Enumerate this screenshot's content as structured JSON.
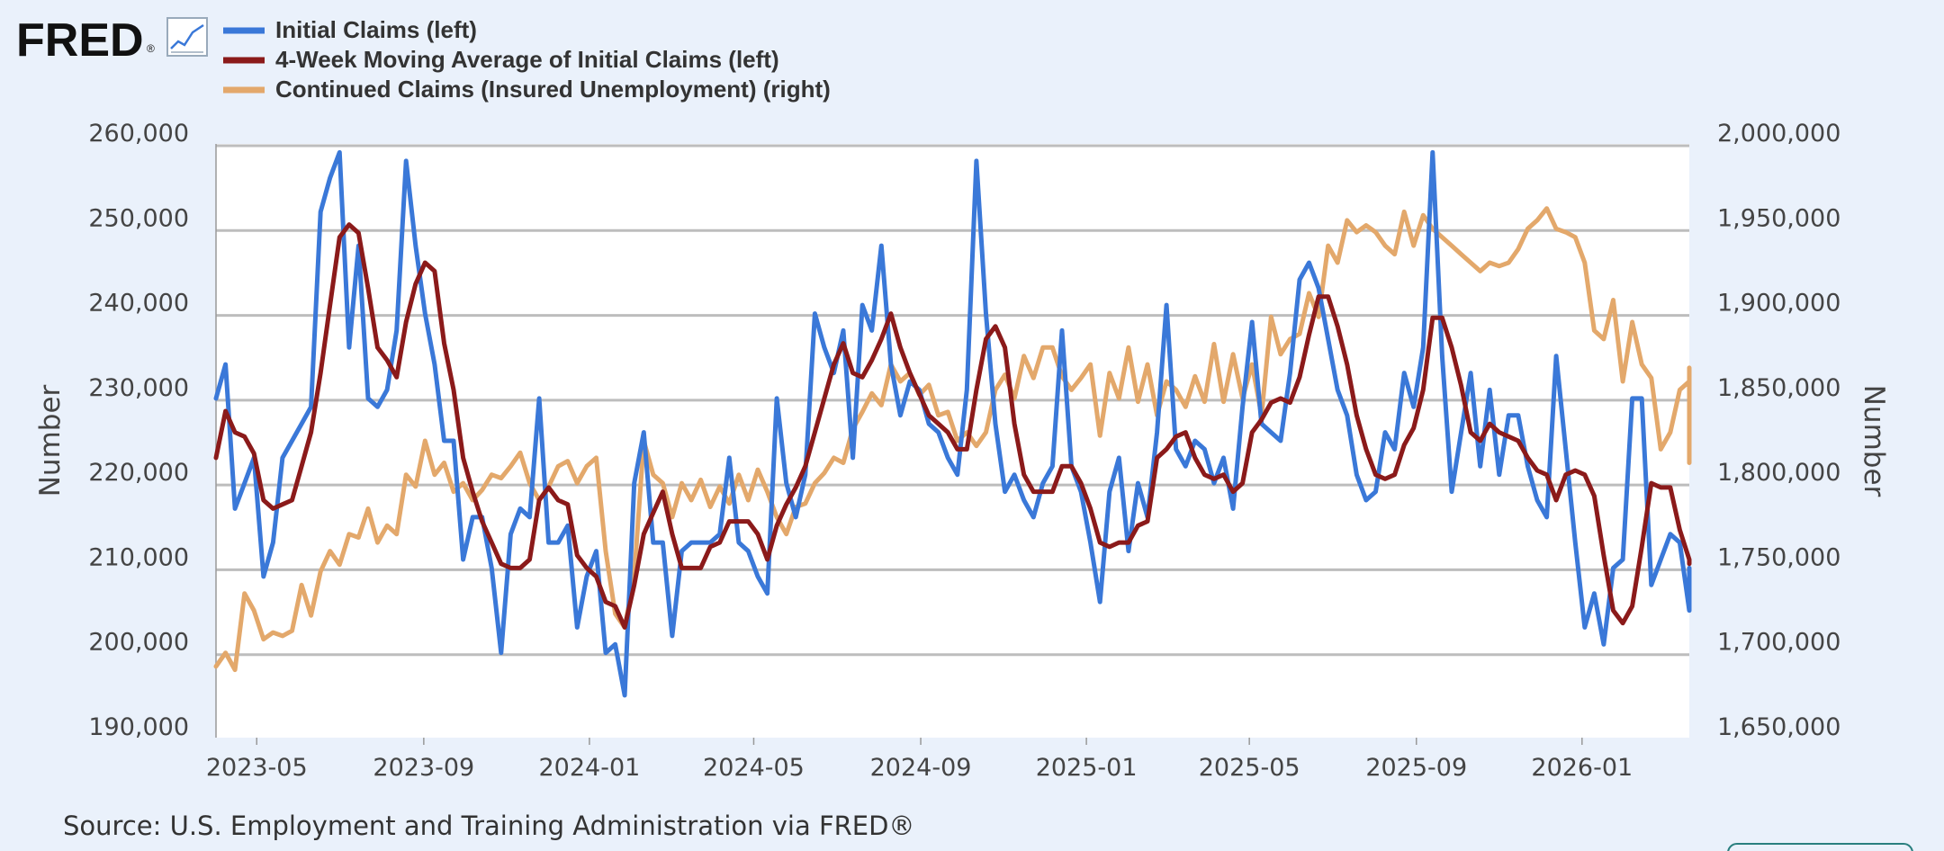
{
  "brand": {
    "logo_text": "FRED",
    "logo_registered": "®"
  },
  "legend": [
    {
      "label": "Initial Claims (left)",
      "color": "#3a78d8"
    },
    {
      "label": "4-Week Moving Average of Initial Claims (left)",
      "color": "#8b1a1a"
    },
    {
      "label": "Continued Claims (Insured Unemployment) (right)",
      "color": "#e3a86b"
    }
  ],
  "axes": {
    "left_title": "Number",
    "right_title": "Number",
    "left_ticks": [
      "260,000",
      "250,000",
      "240,000",
      "230,000",
      "220,000",
      "210,000",
      "200,000",
      "190,000"
    ],
    "right_ticks": [
      "2,000,000",
      "1,950,000",
      "1,900,000",
      "1,850,000",
      "1,800,000",
      "1,750,000",
      "1,700,000",
      "1,650,000"
    ],
    "x_ticks": [
      "2023-05",
      "2023-09",
      "2024-01",
      "2024-05",
      "2024-09",
      "2025-01",
      "2025-05",
      "2025-09",
      "2026-01"
    ]
  },
  "source": "Source: U.S. Employment and Training Administration via FRED®",
  "chart_data": {
    "type": "line",
    "x_start": "2023-04-01",
    "x_end": "2026-03-21",
    "x_step_days": 7,
    "left_ylim": [
      190000,
      260000
    ],
    "right_ylim": [
      1650000,
      2000000
    ],
    "grid": true,
    "series": [
      {
        "name": "Initial Claims (left)",
        "axis": "left",
        "color": "#3a78d8",
        "values": [
          230000,
          234000,
          217000,
          220000,
          223000,
          209000,
          213000,
          223000,
          225000,
          227000,
          229000,
          252000,
          256000,
          259000,
          236000,
          248000,
          230000,
          229000,
          231000,
          238000,
          258000,
          248000,
          240000,
          234000,
          225000,
          225000,
          211000,
          216000,
          216000,
          210000,
          200000,
          214000,
          217000,
          216000,
          230000,
          213000,
          213000,
          215000,
          203000,
          209000,
          212000,
          200000,
          201000,
          195000,
          220000,
          226000,
          213000,
          213000,
          202000,
          212000,
          213000,
          213000,
          213000,
          214000,
          223000,
          213000,
          212000,
          209000,
          207000,
          230000,
          220000,
          216000,
          221000,
          240000,
          236000,
          233000,
          238000,
          223000,
          241000,
          238000,
          248000,
          234000,
          228000,
          232000,
          231000,
          227000,
          226000,
          223000,
          221000,
          231000,
          258000,
          240000,
          227000,
          219000,
          221000,
          218000,
          216000,
          220000,
          222000,
          238000,
          222000,
          219000,
          213000,
          206000,
          219000,
          223000,
          212000,
          220000,
          216000,
          226000,
          241000,
          224000,
          222000,
          225000,
          224000,
          220000,
          223000,
          217000,
          229000,
          239000,
          227000,
          226000,
          225000,
          233000,
          244000,
          246000,
          243000,
          237000,
          231000,
          228000,
          221000,
          218000,
          219000,
          226000,
          224000,
          233000,
          229000,
          236000,
          259000,
          235000,
          219000,
          226000,
          233000,
          222000,
          231000,
          221000,
          228000,
          228000,
          222000,
          218000,
          216000,
          235000,
          224000,
          213000,
          203000,
          207000,
          201000,
          210000,
          211000,
          230000,
          230000,
          208000,
          211000,
          214000,
          213000,
          205000,
          210000
        ]
      },
      {
        "name": "4-Week Moving Average of Initial Claims (left)",
        "axis": "left",
        "color": "#8b1a1a",
        "values": [
          223000,
          228500,
          226000,
          225500,
          223500,
          218000,
          217000,
          217500,
          218000,
          222000,
          226000,
          233000,
          241000,
          249000,
          250500,
          249500,
          243000,
          236000,
          234500,
          232500,
          239000,
          243500,
          246000,
          245000,
          236500,
          231000,
          223000,
          219000,
          215500,
          213000,
          210500,
          210000,
          210000,
          211000,
          218000,
          219500,
          218000,
          217500,
          211500,
          210000,
          209000,
          206000,
          205500,
          203000,
          208000,
          214000,
          216500,
          219000,
          214000,
          210000,
          210000,
          210000,
          212500,
          213000,
          215500,
          215500,
          215500,
          214000,
          211000,
          215000,
          217500,
          219500,
          222000,
          226000,
          230000,
          234000,
          236500,
          233000,
          232500,
          234500,
          237000,
          240000,
          236000,
          233000,
          230500,
          228000,
          227000,
          226000,
          224000,
          224000,
          231000,
          237000,
          238500,
          236000,
          227000,
          221000,
          219000,
          219000,
          219000,
          222000,
          222000,
          220000,
          217000,
          213000,
          212500,
          213000,
          213000,
          215000,
          215500,
          223000,
          224000,
          225500,
          226000,
          223000,
          221000,
          220500,
          221000,
          219000,
          220000,
          226000,
          227500,
          229500,
          230000,
          229500,
          232500,
          237500,
          242000,
          242000,
          238500,
          234000,
          228000,
          224000,
          221000,
          220500,
          221000,
          224500,
          226500,
          231000,
          239500,
          239500,
          236000,
          231500,
          226000,
          225000,
          227000,
          226000,
          225500,
          225000,
          223000,
          221500,
          221000,
          218000,
          221000,
          221500,
          221000,
          218500,
          211500,
          205000,
          203500,
          205500,
          212500,
          220000,
          219500,
          219500,
          214500,
          211000,
          210500
        ]
      },
      {
        "name": "Continued Claims (Insured Unemployment) (right)",
        "axis": "right",
        "color": "#e3a86b",
        "values": [
          1692000,
          1700000,
          1690000,
          1735000,
          1725000,
          1708000,
          1712000,
          1710000,
          1713000,
          1740000,
          1722000,
          1748000,
          1760000,
          1752000,
          1770000,
          1768000,
          1785000,
          1765000,
          1775000,
          1770000,
          1805000,
          1798000,
          1825000,
          1805000,
          1812000,
          1795000,
          1800000,
          1790000,
          1796000,
          1805000,
          1803000,
          1810000,
          1818000,
          1800000,
          1790000,
          1798000,
          1810000,
          1813000,
          1800000,
          1810000,
          1815000,
          1760000,
          1723000,
          1715000,
          1745000,
          1825000,
          1805000,
          1800000,
          1780000,
          1800000,
          1790000,
          1802000,
          1786000,
          1798000,
          1788000,
          1805000,
          1790000,
          1808000,
          1795000,
          1780000,
          1770000,
          1786000,
          1788000,
          1800000,
          1806000,
          1815000,
          1812000,
          1832000,
          1842000,
          1853000,
          1846000,
          1870000,
          1860000,
          1865000,
          1852000,
          1858000,
          1840000,
          1842000,
          1825000,
          1830000,
          1822000,
          1830000,
          1855000,
          1864000,
          1850000,
          1875000,
          1862000,
          1880000,
          1880000,
          1863000,
          1855000,
          1862000,
          1870000,
          1828000,
          1865000,
          1850000,
          1880000,
          1848000,
          1870000,
          1840000,
          1860000,
          1855000,
          1845000,
          1863000,
          1848000,
          1882000,
          1848000,
          1876000,
          1850000,
          1870000,
          1840000,
          1898000,
          1876000,
          1885000,
          1888000,
          1912000,
          1898000,
          1940000,
          1930000,
          1955000,
          1948000,
          1952000,
          1948000,
          1940000,
          1935000,
          1960000,
          1940000,
          1958000,
          1950000,
          1945000,
          1940000,
          1935000,
          1930000,
          1925000,
          1930000,
          1928000,
          1930000,
          1938000,
          1950000,
          1955000,
          1962000,
          1950000,
          1948000,
          1945000,
          1930000,
          1890000,
          1885000,
          1908000,
          1860000,
          1895000,
          1870000,
          1862000,
          1820000,
          1830000,
          1855000,
          1860000,
          1822000,
          1868000,
          1840000,
          1845000,
          1812000
        ]
      }
    ]
  }
}
